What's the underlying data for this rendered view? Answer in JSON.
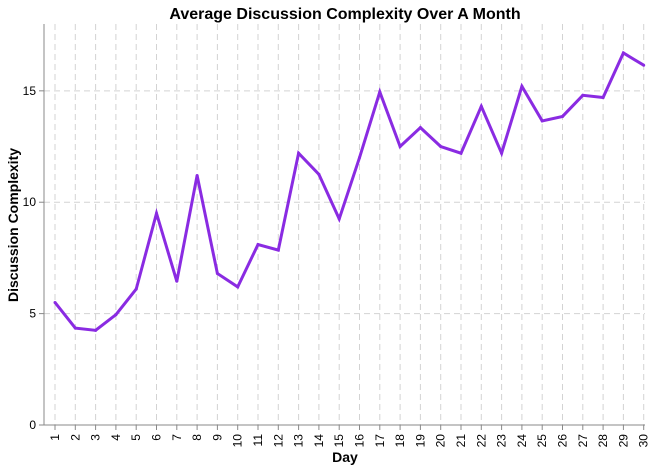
{
  "chart_data": {
    "type": "line",
    "title": "Average Discussion Complexity Over A Month",
    "xlabel": "Day",
    "ylabel": "Discussion Complexity",
    "x": [
      1,
      2,
      3,
      4,
      5,
      6,
      7,
      8,
      9,
      10,
      11,
      12,
      13,
      14,
      15,
      16,
      17,
      18,
      19,
      20,
      21,
      22,
      23,
      24,
      25,
      26,
      27,
      28,
      29,
      30
    ],
    "y": [
      5.5,
      4.35,
      4.25,
      4.95,
      6.1,
      9.5,
      6.45,
      11.2,
      6.8,
      6.2,
      8.1,
      7.85,
      12.2,
      11.25,
      9.25,
      12.0,
      14.95,
      12.5,
      13.35,
      12.5,
      12.2,
      14.3,
      12.2,
      15.2,
      13.65,
      13.85,
      14.8,
      14.7,
      16.7,
      16.15
    ],
    "yticks": [
      0,
      5,
      10,
      15
    ],
    "ylim": [
      0,
      18
    ],
    "grid": true,
    "line_color": "#8a2be2"
  }
}
